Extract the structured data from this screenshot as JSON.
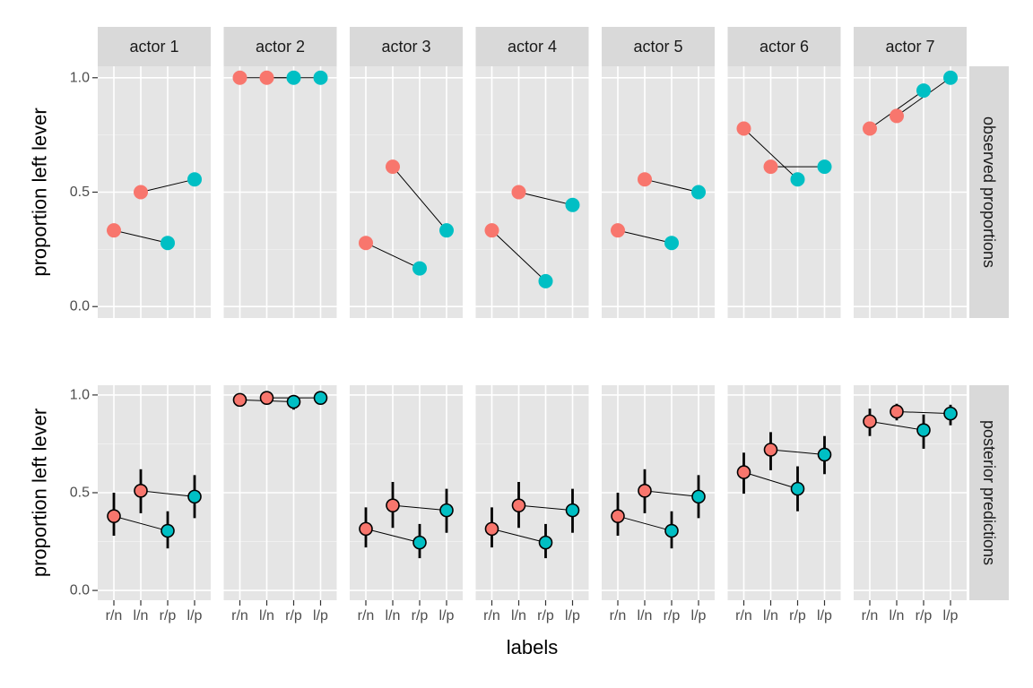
{
  "chart_data": {
    "type": "scatter",
    "xlabel": "labels",
    "ylabel": "proportion left lever",
    "x_categories": [
      "r/n",
      "l/n",
      "r/p",
      "l/p"
    ],
    "y_ticks": [
      "0.0",
      "0.5",
      "1.0"
    ],
    "ylim": [
      -0.05,
      1.05
    ],
    "facet_columns": [
      "actor 1",
      "actor 2",
      "actor 3",
      "actor 4",
      "actor 5",
      "actor 6",
      "actor 7"
    ],
    "facet_rows": [
      "observed proportions",
      "posterior predictions"
    ],
    "colors": {
      "prosoc_left_0": "#F8766D",
      "prosoc_left_1": "#00BFC4",
      "panel_bg": "#E5E5E5",
      "strip_bg": "#D9D9D9"
    },
    "observed": [
      [
        0.333,
        0.5,
        0.278,
        0.556
      ],
      [
        1.0,
        1.0,
        1.0,
        1.0
      ],
      [
        0.278,
        0.611,
        0.167,
        0.333
      ],
      [
        0.333,
        0.5,
        0.111,
        0.444
      ],
      [
        0.333,
        0.556,
        0.278,
        0.5
      ],
      [
        0.778,
        0.611,
        0.556,
        0.611
      ],
      [
        0.778,
        0.833,
        0.944,
        1.0
      ]
    ],
    "predicted": [
      [
        0.38,
        0.51,
        0.305,
        0.48
      ],
      [
        0.975,
        0.985,
        0.965,
        0.985
      ],
      [
        0.315,
        0.435,
        0.245,
        0.41
      ],
      [
        0.315,
        0.435,
        0.245,
        0.41
      ],
      [
        0.38,
        0.51,
        0.305,
        0.48
      ],
      [
        0.605,
        0.72,
        0.52,
        0.695
      ],
      [
        0.865,
        0.915,
        0.82,
        0.905
      ]
    ],
    "predicted_lower": [
      [
        0.28,
        0.395,
        0.215,
        0.37
      ],
      [
        0.95,
        0.965,
        0.925,
        0.965
      ],
      [
        0.22,
        0.32,
        0.165,
        0.295
      ],
      [
        0.22,
        0.32,
        0.165,
        0.295
      ],
      [
        0.28,
        0.395,
        0.215,
        0.37
      ],
      [
        0.495,
        0.615,
        0.405,
        0.595
      ],
      [
        0.79,
        0.87,
        0.725,
        0.845
      ]
    ],
    "predicted_upper": [
      [
        0.5,
        0.62,
        0.405,
        0.59
      ],
      [
        0.995,
        0.998,
        0.99,
        0.998
      ],
      [
        0.425,
        0.555,
        0.34,
        0.52
      ],
      [
        0.425,
        0.555,
        0.34,
        0.52
      ],
      [
        0.5,
        0.62,
        0.405,
        0.59
      ],
      [
        0.705,
        0.81,
        0.635,
        0.79
      ],
      [
        0.93,
        0.955,
        0.9,
        0.95
      ]
    ],
    "legend": "none",
    "grid": true
  }
}
